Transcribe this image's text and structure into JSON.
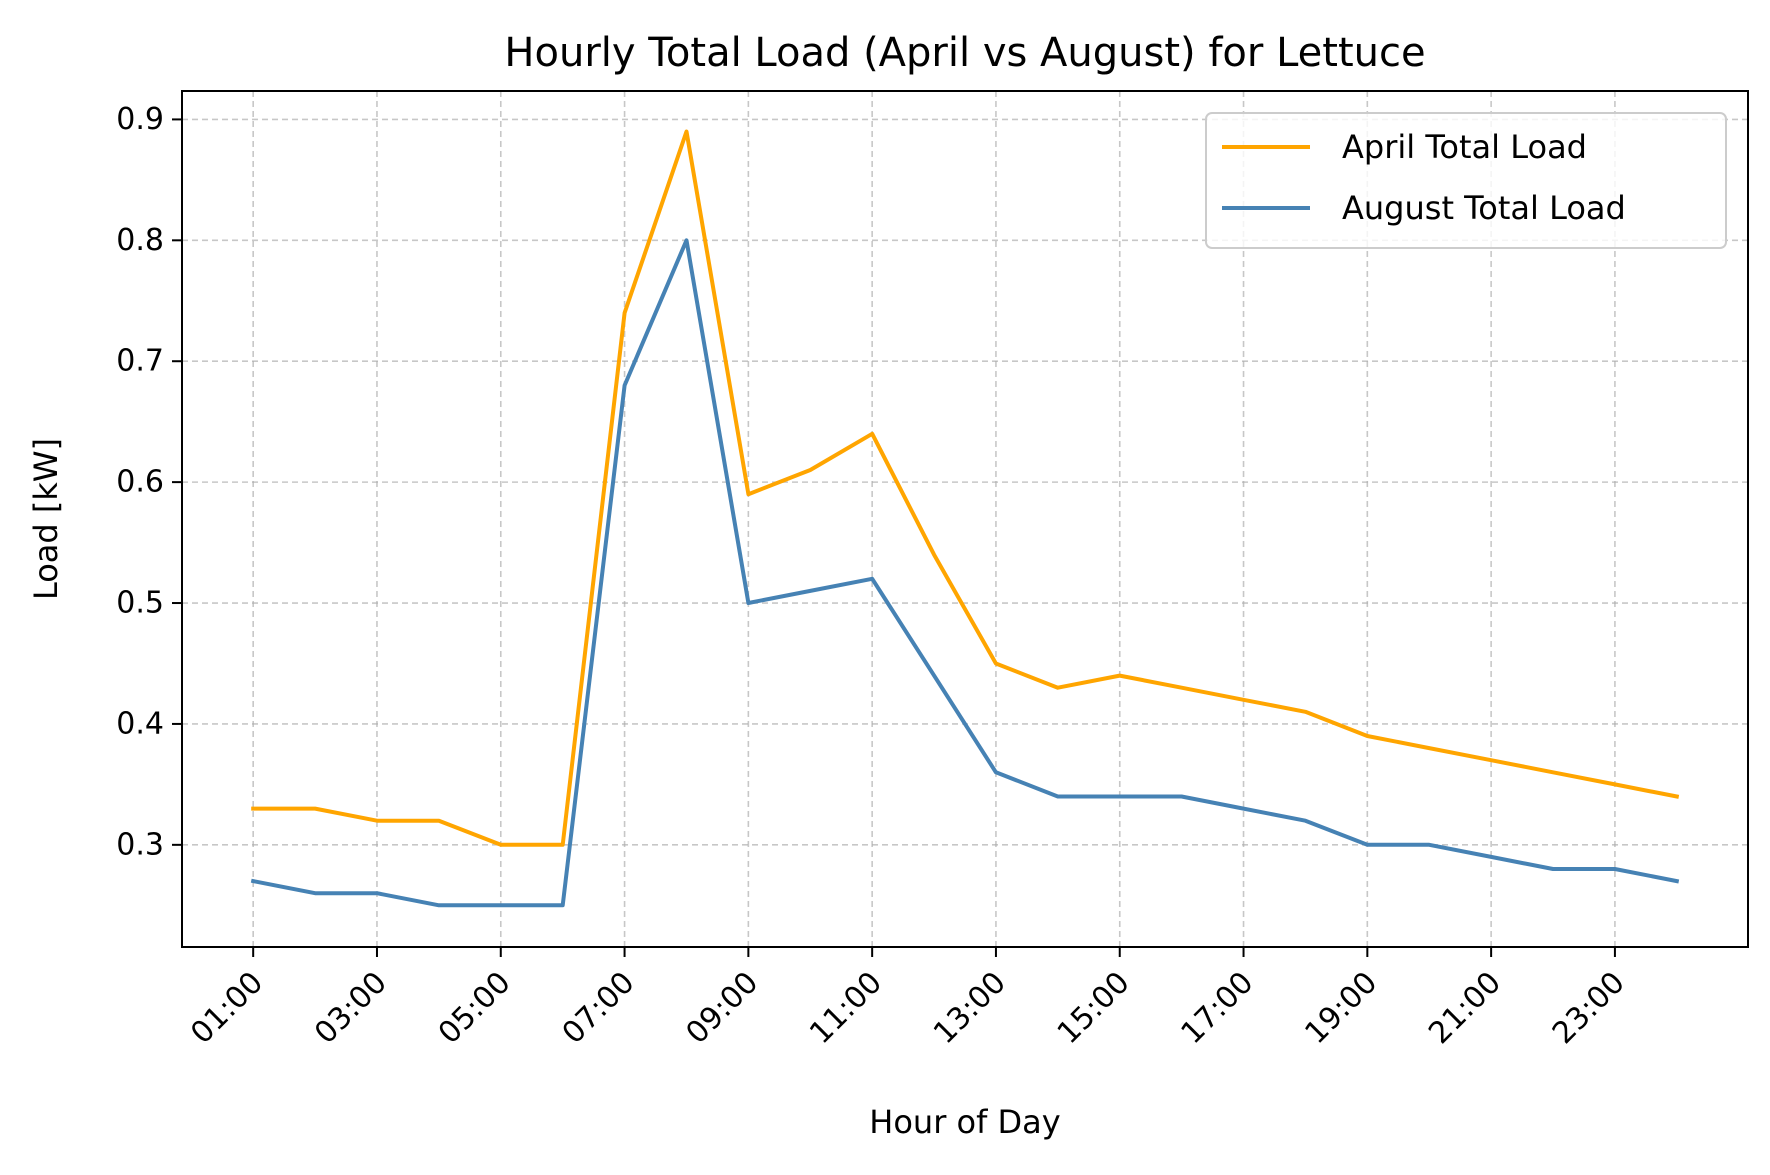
{
  "chart_data": {
    "type": "line",
    "title": "Hourly Total Load (April vs August) for Lettuce",
    "xlabel": "Hour of Day",
    "ylabel": "Load [kW]",
    "x_hours": [
      1,
      2,
      3,
      4,
      5,
      6,
      7,
      8,
      9,
      10,
      11,
      12,
      13,
      14,
      15,
      16,
      17,
      18,
      19,
      20,
      21,
      22,
      23,
      24
    ],
    "x_tick_hours": [
      1,
      3,
      5,
      7,
      9,
      11,
      13,
      15,
      17,
      19,
      21,
      23
    ],
    "x_tick_labels": [
      "01:00",
      "03:00",
      "05:00",
      "07:00",
      "09:00",
      "11:00",
      "13:00",
      "15:00",
      "17:00",
      "19:00",
      "21:00",
      "23:00"
    ],
    "y_ticks": [
      0.3,
      0.4,
      0.5,
      0.6,
      0.7,
      0.8,
      0.9
    ],
    "y_tick_labels": [
      "0.3",
      "0.4",
      "0.5",
      "0.6",
      "0.7",
      "0.8",
      "0.9"
    ],
    "xlim": [
      -0.15,
      25.15
    ],
    "ylim": [
      0.2155,
      0.9235
    ],
    "grid": true,
    "legend_position": "top-right",
    "series": [
      {
        "name": "April Total Load",
        "color": "#FFA500",
        "values": [
          0.33,
          0.33,
          0.32,
          0.32,
          0.3,
          0.3,
          0.74,
          0.89,
          0.59,
          0.61,
          0.64,
          0.54,
          0.45,
          0.43,
          0.44,
          0.43,
          0.42,
          0.41,
          0.39,
          0.38,
          0.37,
          0.36,
          0.35,
          0.34
        ]
      },
      {
        "name": "August Total Load",
        "color": "#4682B4",
        "values": [
          0.27,
          0.26,
          0.26,
          0.25,
          0.25,
          0.25,
          0.68,
          0.8,
          0.5,
          0.51,
          0.52,
          0.44,
          0.36,
          0.34,
          0.34,
          0.34,
          0.33,
          0.32,
          0.3,
          0.3,
          0.29,
          0.28,
          0.28,
          0.27
        ]
      }
    ]
  }
}
